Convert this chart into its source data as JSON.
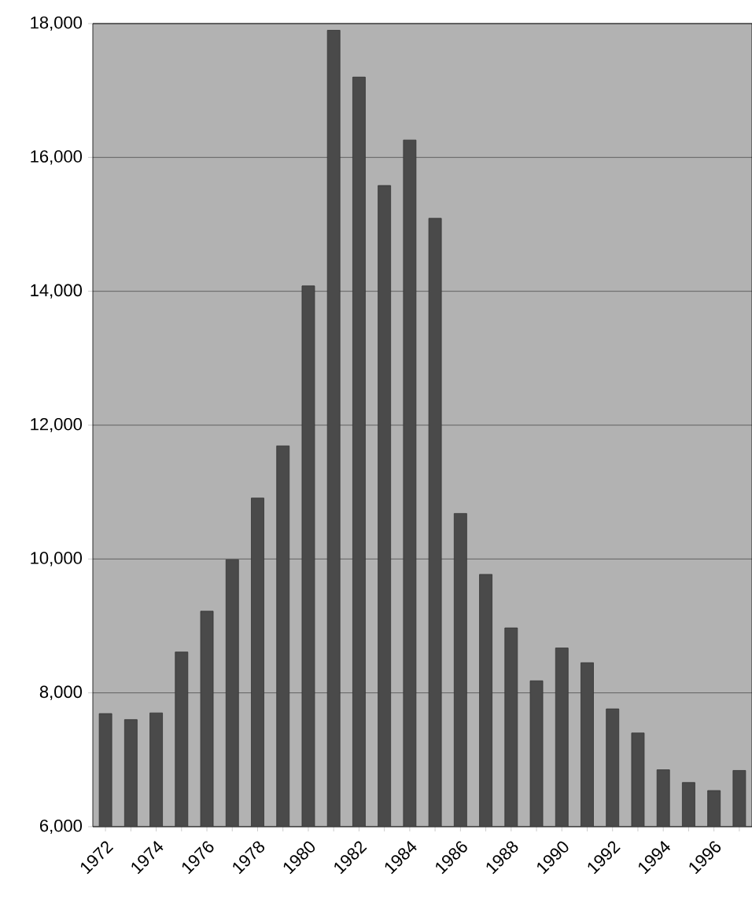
{
  "chart_data": {
    "type": "bar",
    "categories": [
      "1972",
      null,
      "1974",
      null,
      "1976",
      null,
      "1978",
      null,
      "1980",
      null,
      "1982",
      null,
      "1984",
      null,
      "1986",
      null,
      "1988",
      null,
      "1990",
      null,
      "1992",
      null,
      "1994",
      null,
      "1996",
      null
    ],
    "values": [
      7690,
      7600,
      7700,
      8610,
      9220,
      9990,
      10910,
      11690,
      14080,
      17900,
      17200,
      15580,
      16260,
      15090,
      10680,
      9770,
      8970,
      8180,
      8670,
      8450,
      7760,
      7400,
      6850,
      6660,
      6540,
      6840
    ],
    "color": "#4a4a4a",
    "ylim": [
      6000,
      18000
    ],
    "yticks": [
      {
        "value": 6000,
        "label": "6,000"
      },
      {
        "value": 8000,
        "label": "8,000"
      },
      {
        "value": 10000,
        "label": "10,000"
      },
      {
        "value": 12000,
        "label": "12,000"
      },
      {
        "value": 14000,
        "label": "14,000"
      },
      {
        "value": 16000,
        "label": "16,000"
      },
      {
        "value": 18000,
        "label": "18,000"
      }
    ],
    "grid": "y"
  }
}
